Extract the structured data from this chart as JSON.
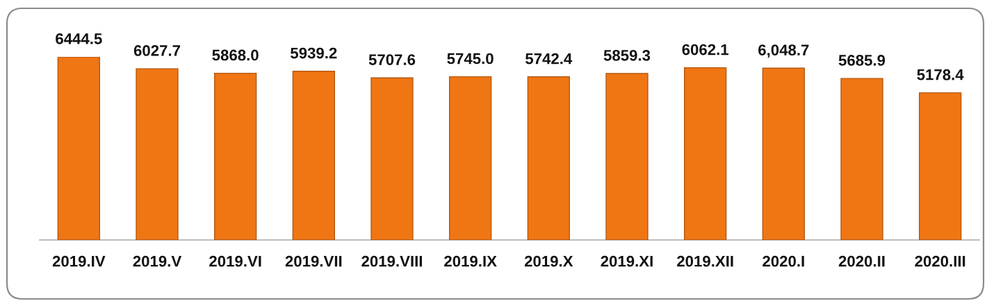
{
  "chart_data": {
    "type": "bar",
    "categories": [
      "2019.IV",
      "2019.V",
      "2019.VI",
      "2019.VII",
      "2019.VIII",
      "2019.IX",
      "2019.X",
      "2019.XI",
      "2019.XII",
      "2020.I",
      "2020.II",
      "2020.III"
    ],
    "values": [
      6444.5,
      6027.7,
      5868.0,
      5939.2,
      5707.6,
      5745.0,
      5742.4,
      5859.3,
      6062.1,
      6048.7,
      5685.9,
      5178.4
    ],
    "value_labels": [
      "6444.5",
      "6027.7",
      "5868.0",
      "5939.2",
      "5707.6",
      "5745.0",
      "5742.4",
      "5859.3",
      "6062.1",
      "6,048.7",
      "5685.9",
      "5178.4"
    ],
    "color": "#f07614"
  }
}
